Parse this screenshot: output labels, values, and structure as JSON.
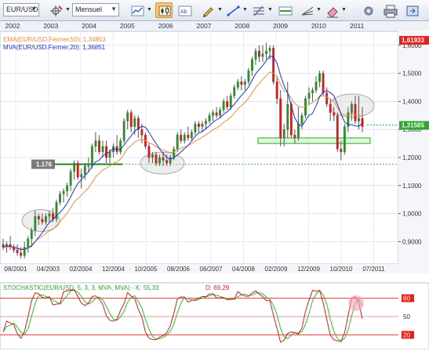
{
  "toolbar": {
    "symbol": "EUR/USD",
    "timeframe": "Mensuel",
    "buttons": [
      "crosshair-tool",
      "candlestick-type",
      "indicators",
      "bar-chart",
      "draw-tools",
      "text-tool",
      "fibonacci-tool",
      "zoom-in",
      "zoom-out",
      "refresh",
      "trend-tool",
      "settings",
      "print"
    ]
  },
  "top_years": [
    "2002",
    "2003",
    "2004",
    "2005",
    "2006",
    "2007",
    "2008",
    "2009",
    "2010",
    "2011"
  ],
  "main_chart": {
    "legend": [
      {
        "label": "EMA(EUR/USD.Fermer,50): 1,34853",
        "color": "#f08a44"
      },
      {
        "label": "MVA(EUR/USD.Fermer,20): 1,36851",
        "color": "#1f2fd6"
      }
    ],
    "y_ticks": [
      "1,6000",
      "1,5000",
      "1,4000",
      "1,3000",
      "1,2000",
      "1,1000",
      "1,0000",
      "0,9000"
    ],
    "price_tags": {
      "top": "1,61933",
      "current": "1,31585",
      "level": "1.176"
    },
    "x_labels": [
      "08/2001",
      "04/2003",
      "02/2004",
      "12/2004",
      "10/2005",
      "08/2006",
      "06/2007",
      "04/2008",
      "02/2009",
      "12/2009",
      "10/2010",
      "07/2011"
    ]
  },
  "stochastic": {
    "legend": "STOCHASTIC(EUR/USD, 5, 3, 3, MVA, MVA) - K: 55,33",
    "d_label": "D: 69,29",
    "y_ticks": [
      "80",
      "50",
      "20"
    ]
  },
  "chart_data": {
    "type": "candlestick",
    "title": "EUR/USD",
    "timeframe": "Mensuel",
    "ylim": [
      0.82,
      1.65
    ],
    "candles": [
      {
        "o": 0.89,
        "h": 0.91,
        "l": 0.87,
        "c": 0.88
      },
      {
        "o": 0.88,
        "h": 0.9,
        "l": 0.86,
        "c": 0.89
      },
      {
        "o": 0.89,
        "h": 0.92,
        "l": 0.87,
        "c": 0.88
      },
      {
        "o": 0.88,
        "h": 0.89,
        "l": 0.86,
        "c": 0.87
      },
      {
        "o": 0.87,
        "h": 0.89,
        "l": 0.85,
        "c": 0.86
      },
      {
        "o": 0.86,
        "h": 0.88,
        "l": 0.84,
        "c": 0.85
      },
      {
        "o": 0.85,
        "h": 0.9,
        "l": 0.84,
        "c": 0.88
      },
      {
        "o": 0.88,
        "h": 0.92,
        "l": 0.86,
        "c": 0.91
      },
      {
        "o": 0.91,
        "h": 0.95,
        "l": 0.88,
        "c": 0.94
      },
      {
        "o": 0.94,
        "h": 1.01,
        "l": 0.92,
        "c": 0.99
      },
      {
        "o": 0.99,
        "h": 1.0,
        "l": 0.96,
        "c": 0.98
      },
      {
        "o": 0.98,
        "h": 1.0,
        "l": 0.96,
        "c": 0.97
      },
      {
        "o": 0.97,
        "h": 1.0,
        "l": 0.96,
        "c": 0.99
      },
      {
        "o": 0.99,
        "h": 1.01,
        "l": 0.97,
        "c": 1.0
      },
      {
        "o": 1.0,
        "h": 1.02,
        "l": 0.97,
        "c": 0.98
      },
      {
        "o": 0.98,
        "h": 1.05,
        "l": 0.97,
        "c": 1.04
      },
      {
        "o": 1.04,
        "h": 1.08,
        "l": 1.03,
        "c": 1.07
      },
      {
        "o": 1.07,
        "h": 1.09,
        "l": 1.04,
        "c": 1.08
      },
      {
        "o": 1.08,
        "h": 1.11,
        "l": 1.06,
        "c": 1.1
      },
      {
        "o": 1.1,
        "h": 1.16,
        "l": 1.08,
        "c": 1.15
      },
      {
        "o": 1.15,
        "h": 1.19,
        "l": 1.12,
        "c": 1.18
      },
      {
        "o": 1.18,
        "h": 1.19,
        "l": 1.12,
        "c": 1.13
      },
      {
        "o": 1.13,
        "h": 1.16,
        "l": 1.09,
        "c": 1.14
      },
      {
        "o": 1.14,
        "h": 1.18,
        "l": 1.12,
        "c": 1.17
      },
      {
        "o": 1.17,
        "h": 1.2,
        "l": 1.15,
        "c": 1.17
      },
      {
        "o": 1.17,
        "h": 1.25,
        "l": 1.16,
        "c": 1.24
      },
      {
        "o": 1.24,
        "h": 1.29,
        "l": 1.22,
        "c": 1.26
      },
      {
        "o": 1.26,
        "h": 1.28,
        "l": 1.21,
        "c": 1.22
      },
      {
        "o": 1.22,
        "h": 1.26,
        "l": 1.2,
        "c": 1.24
      },
      {
        "o": 1.24,
        "h": 1.26,
        "l": 1.18,
        "c": 1.2
      },
      {
        "o": 1.2,
        "h": 1.23,
        "l": 1.18,
        "c": 1.22
      },
      {
        "o": 1.22,
        "h": 1.25,
        "l": 1.2,
        "c": 1.24
      },
      {
        "o": 1.24,
        "h": 1.28,
        "l": 1.21,
        "c": 1.22
      },
      {
        "o": 1.22,
        "h": 1.27,
        "l": 1.21,
        "c": 1.26
      },
      {
        "o": 1.26,
        "h": 1.34,
        "l": 1.25,
        "c": 1.33
      },
      {
        "o": 1.33,
        "h": 1.37,
        "l": 1.3,
        "c": 1.36
      },
      {
        "o": 1.36,
        "h": 1.37,
        "l": 1.29,
        "c": 1.31
      },
      {
        "o": 1.31,
        "h": 1.35,
        "l": 1.28,
        "c": 1.34
      },
      {
        "o": 1.34,
        "h": 1.35,
        "l": 1.27,
        "c": 1.3
      },
      {
        "o": 1.3,
        "h": 1.32,
        "l": 1.25,
        "c": 1.28
      },
      {
        "o": 1.28,
        "h": 1.29,
        "l": 1.23,
        "c": 1.24
      },
      {
        "o": 1.24,
        "h": 1.25,
        "l": 1.18,
        "c": 1.2
      },
      {
        "o": 1.2,
        "h": 1.22,
        "l": 1.18,
        "c": 1.21
      },
      {
        "o": 1.21,
        "h": 1.22,
        "l": 1.17,
        "c": 1.18
      },
      {
        "o": 1.18,
        "h": 1.21,
        "l": 1.17,
        "c": 1.2
      },
      {
        "o": 1.2,
        "h": 1.22,
        "l": 1.17,
        "c": 1.19
      },
      {
        "o": 1.19,
        "h": 1.21,
        "l": 1.17,
        "c": 1.18
      },
      {
        "o": 1.18,
        "h": 1.21,
        "l": 1.17,
        "c": 1.2
      },
      {
        "o": 1.2,
        "h": 1.24,
        "l": 1.19,
        "c": 1.23
      },
      {
        "o": 1.23,
        "h": 1.29,
        "l": 1.22,
        "c": 1.28
      },
      {
        "o": 1.28,
        "h": 1.3,
        "l": 1.25,
        "c": 1.26
      },
      {
        "o": 1.26,
        "h": 1.29,
        "l": 1.25,
        "c": 1.28
      },
      {
        "o": 1.28,
        "h": 1.31,
        "l": 1.26,
        "c": 1.27
      },
      {
        "o": 1.27,
        "h": 1.3,
        "l": 1.26,
        "c": 1.29
      },
      {
        "o": 1.29,
        "h": 1.33,
        "l": 1.28,
        "c": 1.32
      },
      {
        "o": 1.32,
        "h": 1.33,
        "l": 1.29,
        "c": 1.31
      },
      {
        "o": 1.31,
        "h": 1.33,
        "l": 1.29,
        "c": 1.32
      },
      {
        "o": 1.32,
        "h": 1.34,
        "l": 1.3,
        "c": 1.33
      },
      {
        "o": 1.33,
        "h": 1.36,
        "l": 1.32,
        "c": 1.35
      },
      {
        "o": 1.35,
        "h": 1.37,
        "l": 1.33,
        "c": 1.36
      },
      {
        "o": 1.36,
        "h": 1.38,
        "l": 1.34,
        "c": 1.35
      },
      {
        "o": 1.35,
        "h": 1.38,
        "l": 1.34,
        "c": 1.37
      },
      {
        "o": 1.37,
        "h": 1.41,
        "l": 1.36,
        "c": 1.4
      },
      {
        "o": 1.4,
        "h": 1.42,
        "l": 1.37,
        "c": 1.38
      },
      {
        "o": 1.38,
        "h": 1.43,
        "l": 1.37,
        "c": 1.42
      },
      {
        "o": 1.42,
        "h": 1.46,
        "l": 1.41,
        "c": 1.45
      },
      {
        "o": 1.45,
        "h": 1.48,
        "l": 1.44,
        "c": 1.47
      },
      {
        "o": 1.47,
        "h": 1.49,
        "l": 1.44,
        "c": 1.46
      },
      {
        "o": 1.46,
        "h": 1.48,
        "l": 1.44,
        "c": 1.47
      },
      {
        "o": 1.47,
        "h": 1.52,
        "l": 1.46,
        "c": 1.51
      },
      {
        "o": 1.51,
        "h": 1.56,
        "l": 1.49,
        "c": 1.55
      },
      {
        "o": 1.55,
        "h": 1.59,
        "l": 1.53,
        "c": 1.58
      },
      {
        "o": 1.58,
        "h": 1.6,
        "l": 1.54,
        "c": 1.56
      },
      {
        "o": 1.56,
        "h": 1.6,
        "l": 1.54,
        "c": 1.57
      },
      {
        "o": 1.57,
        "h": 1.61,
        "l": 1.55,
        "c": 1.58
      },
      {
        "o": 1.58,
        "h": 1.6,
        "l": 1.55,
        "c": 1.59
      },
      {
        "o": 1.59,
        "h": 1.6,
        "l": 1.46,
        "c": 1.47
      },
      {
        "o": 1.47,
        "h": 1.49,
        "l": 1.39,
        "c": 1.41
      },
      {
        "o": 1.41,
        "h": 1.44,
        "l": 1.24,
        "c": 1.27
      },
      {
        "o": 1.27,
        "h": 1.32,
        "l": 1.24,
        "c": 1.3
      },
      {
        "o": 1.3,
        "h": 1.47,
        "l": 1.27,
        "c": 1.39
      },
      {
        "o": 1.39,
        "h": 1.4,
        "l": 1.27,
        "c": 1.28
      },
      {
        "o": 1.28,
        "h": 1.3,
        "l": 1.25,
        "c": 1.27
      },
      {
        "o": 1.27,
        "h": 1.38,
        "l": 1.26,
        "c": 1.32
      },
      {
        "o": 1.32,
        "h": 1.36,
        "l": 1.3,
        "c": 1.35
      },
      {
        "o": 1.35,
        "h": 1.42,
        "l": 1.34,
        "c": 1.41
      },
      {
        "o": 1.41,
        "h": 1.45,
        "l": 1.39,
        "c": 1.43
      },
      {
        "o": 1.43,
        "h": 1.45,
        "l": 1.4,
        "c": 1.44
      },
      {
        "o": 1.44,
        "h": 1.49,
        "l": 1.43,
        "c": 1.47
      },
      {
        "o": 1.47,
        "h": 1.51,
        "l": 1.45,
        "c": 1.5
      },
      {
        "o": 1.5,
        "h": 1.51,
        "l": 1.42,
        "c": 1.43
      },
      {
        "o": 1.43,
        "h": 1.45,
        "l": 1.38,
        "c": 1.39
      },
      {
        "o": 1.39,
        "h": 1.41,
        "l": 1.33,
        "c": 1.36
      },
      {
        "o": 1.36,
        "h": 1.38,
        "l": 1.33,
        "c": 1.35
      },
      {
        "o": 1.35,
        "h": 1.36,
        "l": 1.22,
        "c": 1.23
      },
      {
        "o": 1.23,
        "h": 1.26,
        "l": 1.19,
        "c": 1.22
      },
      {
        "o": 1.22,
        "h": 1.32,
        "l": 1.21,
        "c": 1.31
      },
      {
        "o": 1.31,
        "h": 1.38,
        "l": 1.29,
        "c": 1.36
      },
      {
        "o": 1.36,
        "h": 1.4,
        "l": 1.33,
        "c": 1.39
      },
      {
        "o": 1.39,
        "h": 1.42,
        "l": 1.32,
        "c": 1.33
      },
      {
        "o": 1.33,
        "h": 1.42,
        "l": 1.3,
        "c": 1.34
      },
      {
        "o": 1.34,
        "h": 1.38,
        "l": 1.29,
        "c": 1.31
      }
    ],
    "overlays": [
      {
        "name": "EMA(EUR/USD.Fermer,50)",
        "color": "#f08a44",
        "last": 1.34853
      },
      {
        "name": "MVA(EUR/USD.Fermer,20)",
        "color": "#1f2fd6",
        "last": 1.36851
      }
    ],
    "support_level": 1.176,
    "dotted_level": 1.176,
    "current_price": 1.31585,
    "high_price": 1.61933,
    "support_zone": [
      1.25,
      1.27
    ],
    "stochastic": {
      "k_color": "#d11f1f",
      "d_color": "#2fbf2f",
      "k_last": 55.33,
      "d_last": 69.29,
      "ylim": [
        0,
        100
      ],
      "levels": [
        20,
        50,
        80
      ]
    },
    "grid": true
  }
}
